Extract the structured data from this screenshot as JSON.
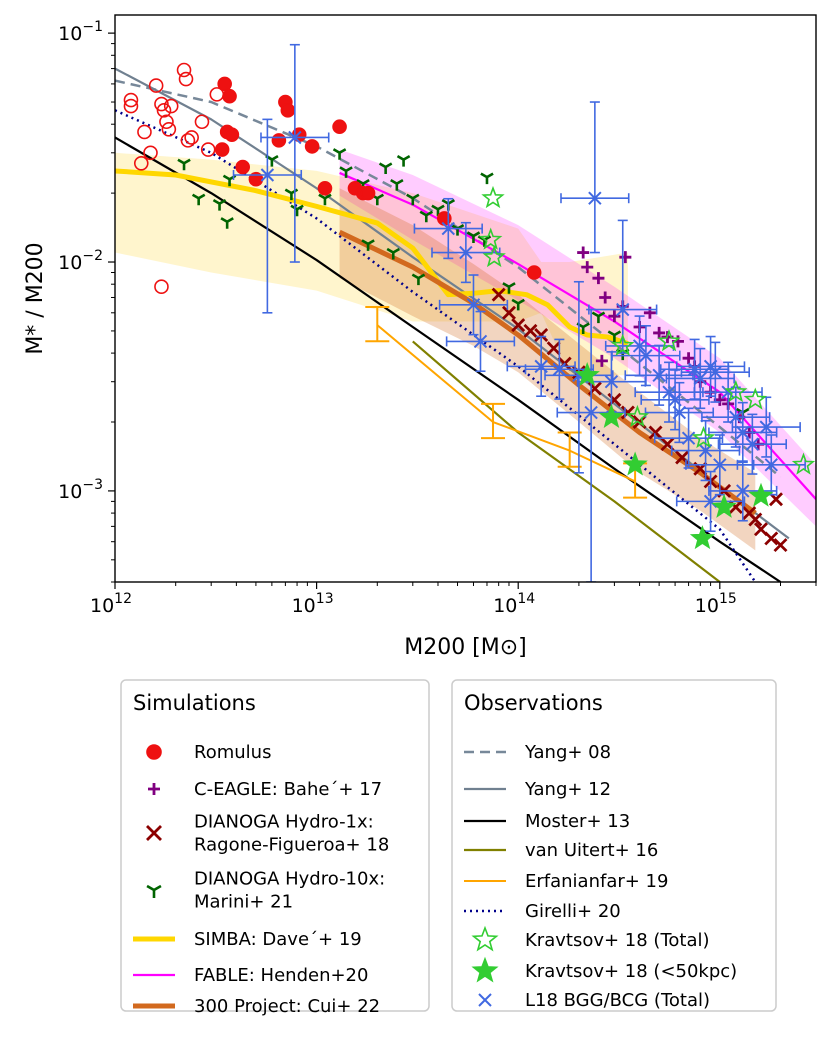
{
  "chart_data": {
    "type": "scatter",
    "xlabel": "M200 [M⊙]",
    "ylabel": "M* / M200",
    "xscale": "log",
    "yscale": "log",
    "xlim": [
      1000000000000.0,
      3000000000000000.0
    ],
    "ylim": [
      0.0004,
      0.12
    ],
    "x_ticks": [
      {
        "label": "10",
        "exp": "12",
        "value": 1000000000000.0
      },
      {
        "label": "10",
        "exp": "13",
        "value": 10000000000000.0
      },
      {
        "label": "10",
        "exp": "14",
        "value": 100000000000000.0
      },
      {
        "label": "10",
        "exp": "15",
        "value": 1000000000000000.0
      }
    ],
    "y_ticks": [
      {
        "label": "10",
        "exp": "−1",
        "value": 0.1
      },
      {
        "label": "10",
        "exp": "−2",
        "value": 0.01
      },
      {
        "label": "10",
        "exp": "−3",
        "value": 0.001
      }
    ],
    "legends": [
      {
        "title": "Simulations",
        "placement": "bottom-left",
        "entries": [
          {
            "key": "romulus",
            "lines": [
              "Romulus"
            ]
          },
          {
            "key": "ceagle",
            "lines": [
              "C-EAGLE: Bahe´+ 17"
            ]
          },
          {
            "key": "dianoga1",
            "lines": [
              "DIANOGA Hydro-1x:",
              "Ragone-Figueroa+ 18"
            ]
          },
          {
            "key": "dianoga10",
            "lines": [
              "DIANOGA Hydro-10x:",
              "Marini+ 21"
            ]
          },
          {
            "key": "simba",
            "lines": [
              "SIMBA: Dave´+ 19"
            ]
          },
          {
            "key": "fable",
            "lines": [
              "FABLE: Henden+20"
            ]
          },
          {
            "key": "p300",
            "lines": [
              "300 Project: Cui+ 22"
            ]
          }
        ]
      },
      {
        "title": "Observations",
        "placement": "bottom-right",
        "entries": [
          {
            "key": "yang08",
            "lines": [
              "Yang+ 08"
            ]
          },
          {
            "key": "yang12",
            "lines": [
              "Yang+ 12"
            ]
          },
          {
            "key": "moster",
            "lines": [
              "Moster+ 13"
            ]
          },
          {
            "key": "vanuitert",
            "lines": [
              "van Uitert+ 16"
            ]
          },
          {
            "key": "erfanian",
            "lines": [
              "Erfanianfar+ 19"
            ]
          },
          {
            "key": "girelli",
            "lines": [
              "Girelli+ 20"
            ]
          },
          {
            "key": "kravtsov_total",
            "lines": [
              "Kravtsov+ 18 (Total)"
            ]
          },
          {
            "key": "kravtsov_50",
            "lines": [
              "Kravtsov+ 18 (<50kpc)"
            ]
          },
          {
            "key": "l18",
            "lines": [
              "L18 BGG/BCG (Total)"
            ]
          }
        ]
      }
    ],
    "colors": {
      "romulus": "#ee1111",
      "ceagle": "#800080",
      "dianoga1": "#8b0000",
      "dianoga10": "#006400",
      "simba": "#ffd700",
      "simba_band": "#fff3c4",
      "fable": "#ff00ff",
      "p300": "#d2691e",
      "yang08": "#778899",
      "yang12": "#708090",
      "moster": "#000000",
      "vanuitert": "#808000",
      "erfanian": "#ffa500",
      "girelli": "#00008b",
      "kravtsov": "#32cd32",
      "l18": "#4169e1"
    },
    "series": [
      {
        "name": "Yang+ 08",
        "key": "yang08",
        "style": "dashed",
        "x": [
          1000000000000.0,
          3000000000000.0,
          10000000000000.0,
          30000000000000.0,
          100000000000000.0,
          300000000000000.0,
          1000000000000000.0,
          2000000000000000.0
        ],
        "y": [
          0.062,
          0.05,
          0.032,
          0.019,
          0.0095,
          0.0044,
          0.0019,
          0.00115
        ]
      },
      {
        "name": "Yang+ 12",
        "key": "yang12",
        "style": "solid",
        "x": [
          1000000000000.0,
          3000000000000.0,
          10000000000000.0,
          30000000000000.0,
          100000000000000.0,
          300000000000000.0,
          1000000000000000.0,
          2200000000000000.0
        ],
        "y": [
          0.07,
          0.042,
          0.021,
          0.0105,
          0.0051,
          0.0024,
          0.00105,
          0.00062
        ]
      },
      {
        "name": "Moster+ 13",
        "key": "moster",
        "style": "solid",
        "x": [
          1000000000000.0,
          3000000000000.0,
          10000000000000.0,
          30000000000000.0,
          100000000000000.0,
          300000000000000.0,
          1000000000000000.0,
          2000000000000000.0
        ],
        "y": [
          0.035,
          0.02,
          0.0102,
          0.0052,
          0.0025,
          0.00125,
          0.0006,
          0.0004
        ]
      },
      {
        "name": "van Uitert+ 16",
        "key": "vanuitert",
        "style": "solid",
        "x": [
          30000000000000.0,
          100000000000000.0,
          300000000000000.0,
          1000000000000000.0
        ],
        "y": [
          0.0045,
          0.0018,
          0.0009,
          0.0004
        ]
      },
      {
        "name": "Girelli+ 20",
        "key": "girelli",
        "style": "dotted",
        "x": [
          1000000000000.0,
          3000000000000.0,
          10000000000000.0,
          30000000000000.0,
          100000000000000.0,
          300000000000000.0,
          1000000000000000.0,
          1500000000000000.0
        ],
        "y": [
          0.046,
          0.03,
          0.0155,
          0.0074,
          0.0035,
          0.0016,
          0.00068,
          0.0004
        ]
      },
      {
        "name": "SIMBA: Dave´+ 19",
        "key": "simba",
        "style": "thick",
        "x": [
          1000000000000.0,
          2000000000000.0,
          5000000000000.0,
          10000000000000.0,
          20000000000000.0,
          30000000000000.0,
          45000000000000.0,
          60000000000000.0,
          80000000000000.0,
          110000000000000.0,
          140000000000000.0,
          180000000000000.0,
          220000000000000.0,
          280000000000000.0,
          350000000000000.0
        ],
        "y": [
          0.025,
          0.024,
          0.0205,
          0.0175,
          0.0148,
          0.0115,
          0.0072,
          0.0073,
          0.0075,
          0.0072,
          0.0065,
          0.0052,
          0.0048,
          0.0047,
          0.0044
        ]
      },
      {
        "name": "FABLE: Henden+20",
        "key": "fable",
        "style": "solid",
        "x": [
          13000000000000.0,
          30000000000000.0,
          100000000000000.0,
          300000000000000.0,
          1000000000000000.0,
          3000000000000000.0
        ],
        "y": [
          0.0245,
          0.0178,
          0.0098,
          0.0055,
          0.0027,
          0.00092
        ]
      },
      {
        "name": "300 Project: Cui+ 22",
        "key": "p300",
        "style": "thick",
        "x": [
          13000000000000.0,
          30000000000000.0,
          60000000000000.0,
          100000000000000.0,
          200000000000000.0,
          400000000000000.0,
          800000000000000.0,
          1500000000000000.0
        ],
        "y": [
          0.0135,
          0.0095,
          0.0066,
          0.0048,
          0.0029,
          0.0018,
          0.0012,
          0.0008
        ]
      },
      {
        "name": "Erfanianfar+ 19",
        "key": "erfanian",
        "style": "errseg",
        "x": [
          20000000000000.0,
          75000000000000.0,
          180000000000000.0,
          380000000000000.0
        ],
        "y": [
          0.0053,
          0.002,
          0.0015,
          0.0011
        ]
      }
    ],
    "romulus_filled": [
      [
        3500000000000.0,
        0.06
      ],
      [
        3700000000000.0,
        0.053
      ],
      [
        3600000000000.0,
        0.037
      ],
      [
        3800000000000.0,
        0.036
      ],
      [
        3400000000000.0,
        0.031
      ],
      [
        4300000000000.0,
        0.026
      ],
      [
        5000000000000.0,
        0.023
      ],
      [
        6500000000000.0,
        0.034
      ],
      [
        7000000000000.0,
        0.05
      ],
      [
        7200000000000.0,
        0.046
      ],
      [
        8200000000000.0,
        0.036
      ],
      [
        9500000000000.0,
        0.032
      ],
      [
        11000000000000.0,
        0.021
      ],
      [
        13000000000000.0,
        0.039
      ],
      [
        15500000000000.0,
        0.021
      ],
      [
        17000000000000.0,
        0.02
      ],
      [
        18000000000000.0,
        0.02
      ],
      [
        43000000000000.0,
        0.0155
      ],
      [
        120000000000000.0,
        0.009
      ]
    ],
    "romulus_open": [
      [
        1200000000000.0,
        0.051
      ],
      [
        1200000000000.0,
        0.048
      ],
      [
        1350000000000.0,
        0.027
      ],
      [
        1400000000000.0,
        0.037
      ],
      [
        1500000000000.0,
        0.03
      ],
      [
        1600000000000.0,
        0.059
      ],
      [
        1700000000000.0,
        0.049
      ],
      [
        1750000000000.0,
        0.046
      ],
      [
        1800000000000.0,
        0.041
      ],
      [
        1850000000000.0,
        0.038
      ],
      [
        1900000000000.0,
        0.048
      ],
      [
        2200000000000.0,
        0.069
      ],
      [
        2250000000000.0,
        0.063
      ],
      [
        2300000000000.0,
        0.034
      ],
      [
        2400000000000.0,
        0.035
      ],
      [
        2700000000000.0,
        0.041
      ],
      [
        2900000000000.0,
        0.031
      ],
      [
        3200000000000.0,
        0.054
      ],
      [
        1700000000000.0,
        0.0078
      ]
    ],
    "ceagle": [
      [
        210000000000000.0,
        0.011
      ],
      [
        220000000000000.0,
        0.0095
      ],
      [
        250000000000000.0,
        0.0085
      ],
      [
        270000000000000.0,
        0.007
      ],
      [
        300000000000000.0,
        0.0058
      ],
      [
        330000000000000.0,
        0.0064
      ],
      [
        340000000000000.0,
        0.0105
      ],
      [
        400000000000000.0,
        0.0052
      ],
      [
        450000000000000.0,
        0.006
      ],
      [
        500000000000000.0,
        0.0049
      ],
      [
        550000000000000.0,
        0.0047
      ],
      [
        620000000000000.0,
        0.0045
      ],
      [
        700000000000000.0,
        0.0038
      ],
      [
        750000000000000.0,
        0.0035
      ],
      [
        800000000000000.0,
        0.003
      ],
      [
        900000000000000.0,
        0.0027
      ],
      [
        1000000000000000.0,
        0.0025
      ],
      [
        1100000000000000.0,
        0.0024
      ],
      [
        1250000000000000.0,
        0.0021
      ],
      [
        1400000000000000.0,
        0.0018
      ],
      [
        1550000000000000.0,
        0.0016
      ],
      [
        260000000000000.0,
        0.0037
      ]
    ],
    "dianoga1": [
      [
        80000000000000.0,
        0.0072
      ],
      [
        90000000000000.0,
        0.006
      ],
      [
        100000000000000.0,
        0.0053
      ],
      [
        115000000000000.0,
        0.005
      ],
      [
        130000000000000.0,
        0.0048
      ],
      [
        150000000000000.0,
        0.0042
      ],
      [
        170000000000000.0,
        0.0036
      ],
      [
        200000000000000.0,
        0.0033
      ],
      [
        240000000000000.0,
        0.0028
      ],
      [
        300000000000000.0,
        0.0025
      ],
      [
        350000000000000.0,
        0.0022
      ],
      [
        400000000000000.0,
        0.002
      ],
      [
        480000000000000.0,
        0.0018
      ],
      [
        550000000000000.0,
        0.0016
      ],
      [
        650000000000000.0,
        0.0014
      ],
      [
        800000000000000.0,
        0.00125
      ],
      [
        900000000000000.0,
        0.0011
      ],
      [
        1050000000000000.0,
        0.001
      ],
      [
        1200000000000000.0,
        0.00085
      ],
      [
        1400000000000000.0,
        0.0008
      ],
      [
        1600000000000000.0,
        0.00068
      ],
      [
        1800000000000000.0,
        0.00062
      ],
      [
        2000000000000000.0,
        0.00058
      ],
      [
        1900000000000000.0,
        0.00092
      ],
      [
        1500000000000000.0,
        0.00075
      ]
    ],
    "dianoga10": [
      [
        13000000000000.0,
        0.03
      ],
      [
        14000000000000.0,
        0.025
      ],
      [
        17000000000000.0,
        0.022
      ],
      [
        20000000000000.0,
        0.019
      ],
      [
        22000000000000.0,
        0.026
      ],
      [
        25000000000000.0,
        0.022
      ],
      [
        27000000000000.0,
        0.028
      ],
      [
        30000000000000.0,
        0.019
      ],
      [
        35000000000000.0,
        0.016
      ],
      [
        40000000000000.0,
        0.017
      ],
      [
        45000000000000.0,
        0.018
      ],
      [
        50000000000000.0,
        0.014
      ],
      [
        60000000000000.0,
        0.013
      ],
      [
        70000000000000.0,
        0.0235
      ],
      [
        68000000000000.0,
        0.0125
      ],
      [
        32000000000000.0,
        0.0085
      ],
      [
        24000000000000.0,
        0.011
      ],
      [
        18000000000000.0,
        0.012
      ],
      [
        2200000000000.0,
        0.027
      ],
      [
        2600000000000.0,
        0.019
      ],
      [
        3300000000000.0,
        0.018
      ],
      [
        3600000000000.0,
        0.015
      ],
      [
        3700000000000.0,
        0.023
      ],
      [
        6000000000000.0,
        0.028
      ],
      [
        7500000000000.0,
        0.02
      ],
      [
        8000000000000.0,
        0.017
      ],
      [
        11000000000000.0,
        0.019
      ],
      [
        210000000000000.0,
        0.0052
      ],
      [
        250000000000000.0,
        0.0058
      ],
      [
        300000000000000.0,
        0.0048
      ],
      [
        330000000000000.0,
        0.004
      ],
      [
        100000000000000.0,
        0.0066
      ],
      [
        90000000000000.0,
        0.0078
      ],
      [
        1300000000000000.0,
        0.0022
      ]
    ],
    "kravtsov_total": [
      [
        75000000000000.0,
        0.019
      ],
      [
        73000000000000.0,
        0.0125
      ],
      [
        76000000000000.0,
        0.0105
      ],
      [
        330000000000000.0,
        0.0043
      ],
      [
        560000000000000.0,
        0.0045
      ],
      [
        390000000000000.0,
        0.0021
      ],
      [
        830000000000000.0,
        0.0017
      ],
      [
        1200000000000000.0,
        0.0027
      ],
      [
        1500000000000000.0,
        0.0025
      ],
      [
        2600000000000000.0,
        0.0013
      ]
    ],
    "kravtsov_50": [
      [
        220000000000000.0,
        0.0032
      ],
      [
        290000000000000.0,
        0.0021
      ],
      [
        380000000000000.0,
        0.0013
      ],
      [
        820000000000000.0,
        0.00062
      ],
      [
        1050000000000000.0,
        0.00085
      ],
      [
        1600000000000000.0,
        0.00095
      ]
    ],
    "l18": [
      [
        5700000000000.0,
        0.024,
        0.018,
        0.006
      ],
      [
        7800000000000.0,
        0.035,
        0.054,
        0.01
      ],
      [
        240000000000000.0,
        0.019,
        0.031,
        0.011
      ],
      [
        45000000000000.0,
        0.014
      ],
      [
        55000000000000.0,
        0.011
      ],
      [
        60000000000000.0,
        0.0065
      ],
      [
        65000000000000.0,
        0.0045
      ],
      [
        130000000000000.0,
        0.0035
      ],
      [
        160000000000000.0,
        0.0034
      ],
      [
        200000000000000.0,
        0.0032,
        0.005,
        0.0012
      ],
      [
        230000000000000.0,
        0.0022,
        0.004,
        0.0004
      ],
      [
        290000000000000.0,
        0.003
      ],
      [
        330000000000000.0,
        0.0062,
        0.009,
        0.004
      ],
      [
        400000000000000.0,
        0.0043
      ],
      [
        430000000000000.0,
        0.0039
      ],
      [
        500000000000000.0,
        0.0032
      ],
      [
        560000000000000.0,
        0.0027
      ],
      [
        600000000000000.0,
        0.0025
      ],
      [
        630000000000000.0,
        0.0022
      ],
      [
        700000000000000.0,
        0.0017
      ],
      [
        750000000000000.0,
        0.0034
      ],
      [
        800000000000000.0,
        0.0031
      ],
      [
        850000000000000.0,
        0.0015
      ],
      [
        900000000000000.0,
        0.0035
      ],
      [
        950000000000000.0,
        0.0033
      ],
      [
        1000000000000000.0,
        0.0013
      ],
      [
        1100000000000000.0,
        0.0027
      ],
      [
        1200000000000000.0,
        0.0021
      ],
      [
        1300000000000000.0,
        0.0018
      ],
      [
        1450000000000000.0,
        0.0016
      ],
      [
        1700000000000000.0,
        0.0019
      ],
      [
        1800000000000000.0,
        0.0013
      ],
      [
        1300000000000000.0,
        0.001
      ],
      [
        900000000000000.0,
        0.0009
      ]
    ]
  }
}
